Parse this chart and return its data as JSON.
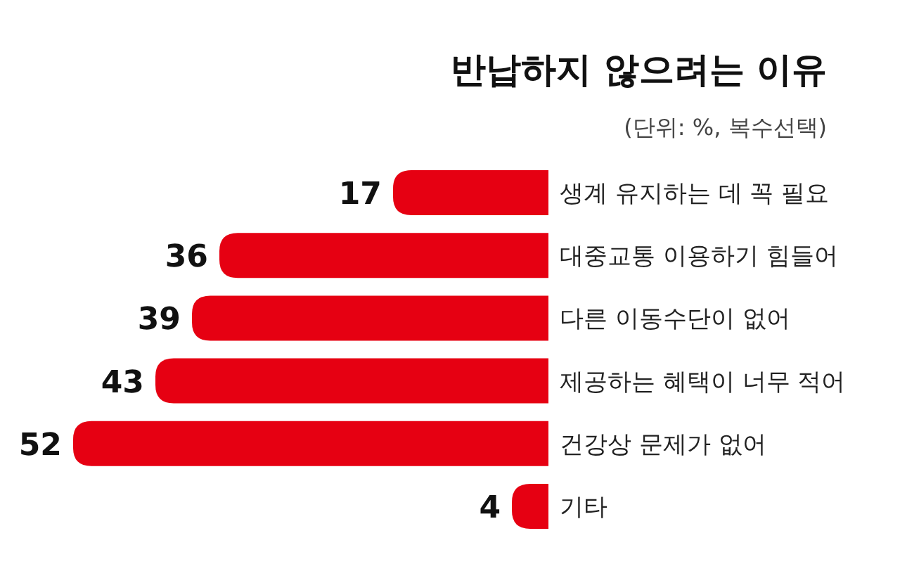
{
  "chart_data": {
    "type": "bar",
    "orientation": "horizontal",
    "title": "반납하지 않으려는 이유",
    "subtitle": "(단위: %, 복수선택)",
    "categories": [
      "생계 유지하는 데 꼭 필요",
      "대중교통 이용하기 힘들어",
      "다른 이동수단이 없어",
      "제공하는 혜택이 너무 적어",
      "건강상 문제가 없어",
      "기타"
    ],
    "values": [
      17,
      36,
      39,
      43,
      52,
      4
    ],
    "color": "#e60012",
    "data_labels": true
  }
}
